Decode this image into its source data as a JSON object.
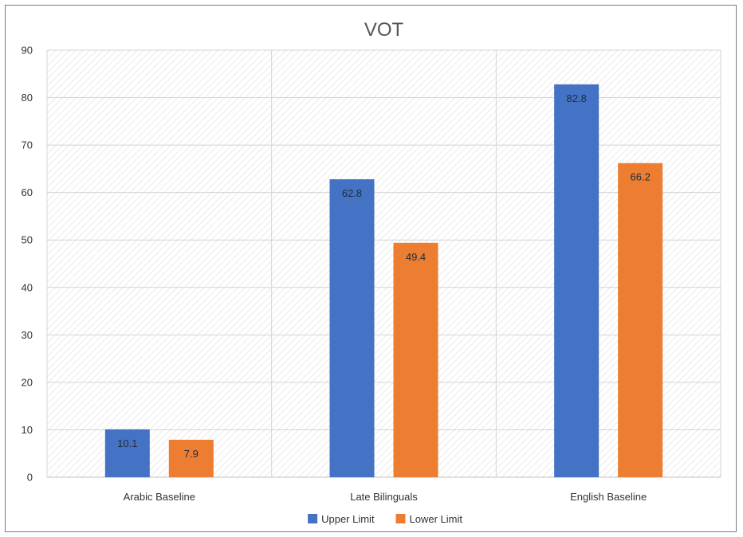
{
  "chart_data": {
    "type": "bar",
    "title": "VOT",
    "xlabel": "",
    "ylabel": "",
    "categories": [
      "Arabic Baseline",
      "Late Bilinguals",
      "English Baseline"
    ],
    "series": [
      {
        "name": "Upper Limit",
        "values": [
          10.1,
          62.8,
          82.8
        ],
        "color": "#4472c4"
      },
      {
        "name": "Lower Limit",
        "values": [
          7.9,
          49.4,
          66.2
        ],
        "color": "#ed7d31"
      }
    ],
    "ylim": [
      0,
      90
    ],
    "yticks": [
      0,
      10,
      20,
      30,
      40,
      50,
      60,
      70,
      80,
      90
    ],
    "grid": true,
    "legend_position": "bottom",
    "data_labels": true
  }
}
